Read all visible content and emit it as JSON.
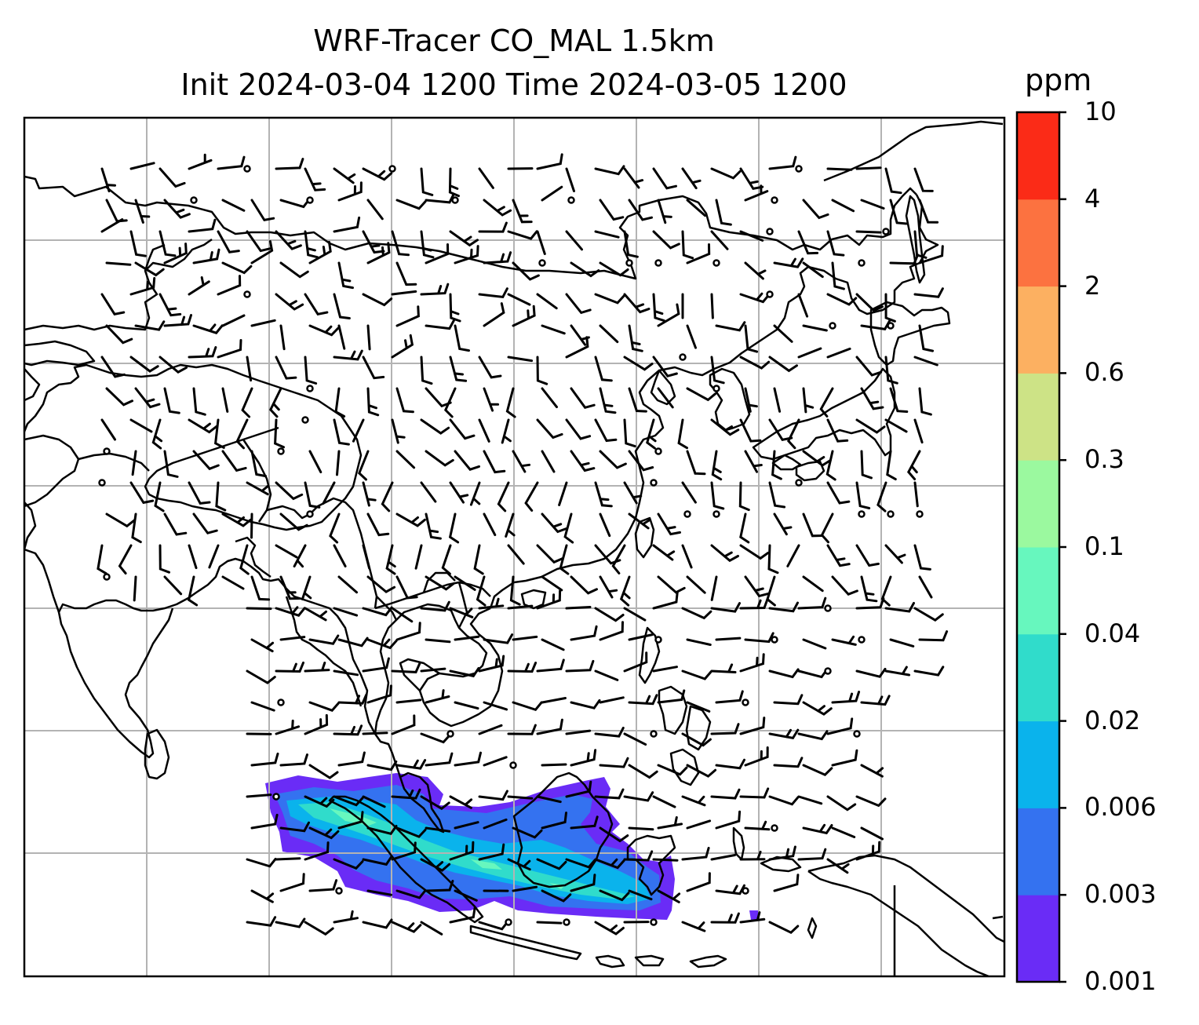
{
  "title_line1": "WRF-Tracer CO_MAL 1.5km",
  "title_line2": "Init 2024-03-04 1200 Time 2024-03-05 1200",
  "colorbar": {
    "units": "ppm",
    "ticks": [
      "0.001",
      "0.003",
      "0.006",
      "0.02",
      "0.04",
      "0.1",
      "0.3",
      "0.6",
      "2",
      "4",
      "10"
    ],
    "colors": [
      "#6a2cf6",
      "#3472f0",
      "#0ab3ec",
      "#30dccb",
      "#67f7be",
      "#9bf99f",
      "#cde386",
      "#fcb061",
      "#fc7240",
      "#fb2b17"
    ]
  },
  "map": {
    "background": "#ffffff",
    "coastline_color": "#000000",
    "gridline_color": "#b3b3b3",
    "tracer_plume_region": "Malaysia / Sumatra / Borneo",
    "wind_barbs": true,
    "calm_circles": true
  }
}
